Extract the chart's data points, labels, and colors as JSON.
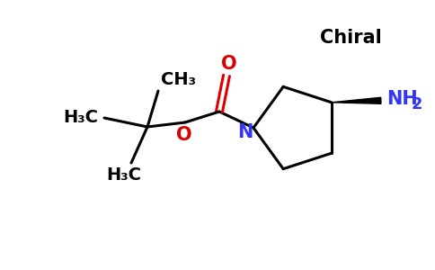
{
  "background_color": "#ffffff",
  "chiral_label": "Chiral",
  "chiral_color": "#000000",
  "nh2_label": "NH",
  "nh2_sub": "2",
  "nh2_color": "#3333ff",
  "n_label": "N",
  "n_color": "#3333ff",
  "o_color": "#dd0000",
  "bond_color": "#000000",
  "bond_width": 2.2,
  "figsize": [
    4.84,
    3.0
  ],
  "dpi": 100,
  "font_size": 14
}
